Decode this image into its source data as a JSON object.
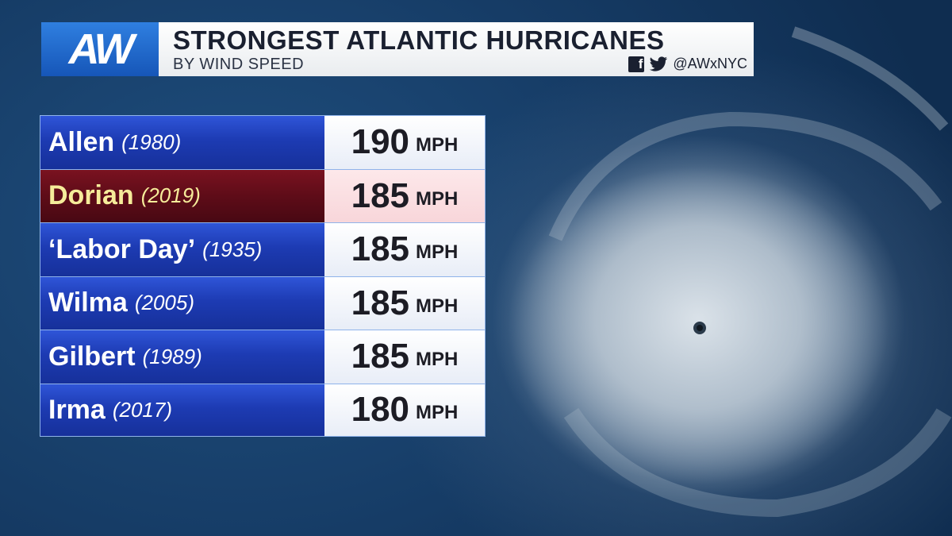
{
  "header": {
    "logo_text": "AW",
    "title": "STRONGEST ATLANTIC HURRICANES",
    "subtitle": "BY WIND SPEED",
    "handle": "@AWxNYC",
    "icons": [
      "facebook-icon",
      "twitter-icon"
    ]
  },
  "colors": {
    "logo_blue": "#1f6ad0",
    "bolt_yellow": "#f3c11b",
    "row_blue": "#1d3bb3",
    "row_highlight": "#5e0c18",
    "highlight_text": "#f6ec9a"
  },
  "chart_data": {
    "type": "table",
    "title": "STRONGEST ATLANTIC HURRICANES",
    "subtitle": "BY WIND SPEED",
    "unit": "MPH",
    "rows": [
      {
        "name": "Allen",
        "year": "(1980)",
        "value": 190,
        "highlight": false
      },
      {
        "name": "Dorian",
        "year": "(2019)",
        "value": 185,
        "highlight": true
      },
      {
        "name": "‘Labor Day’",
        "year": "(1935)",
        "value": 185,
        "highlight": false
      },
      {
        "name": "Wilma",
        "year": "(2005)",
        "value": 185,
        "highlight": false
      },
      {
        "name": "Gilbert",
        "year": "(1989)",
        "value": 185,
        "highlight": false
      },
      {
        "name": "Irma",
        "year": "(2017)",
        "value": 180,
        "highlight": false
      }
    ]
  }
}
